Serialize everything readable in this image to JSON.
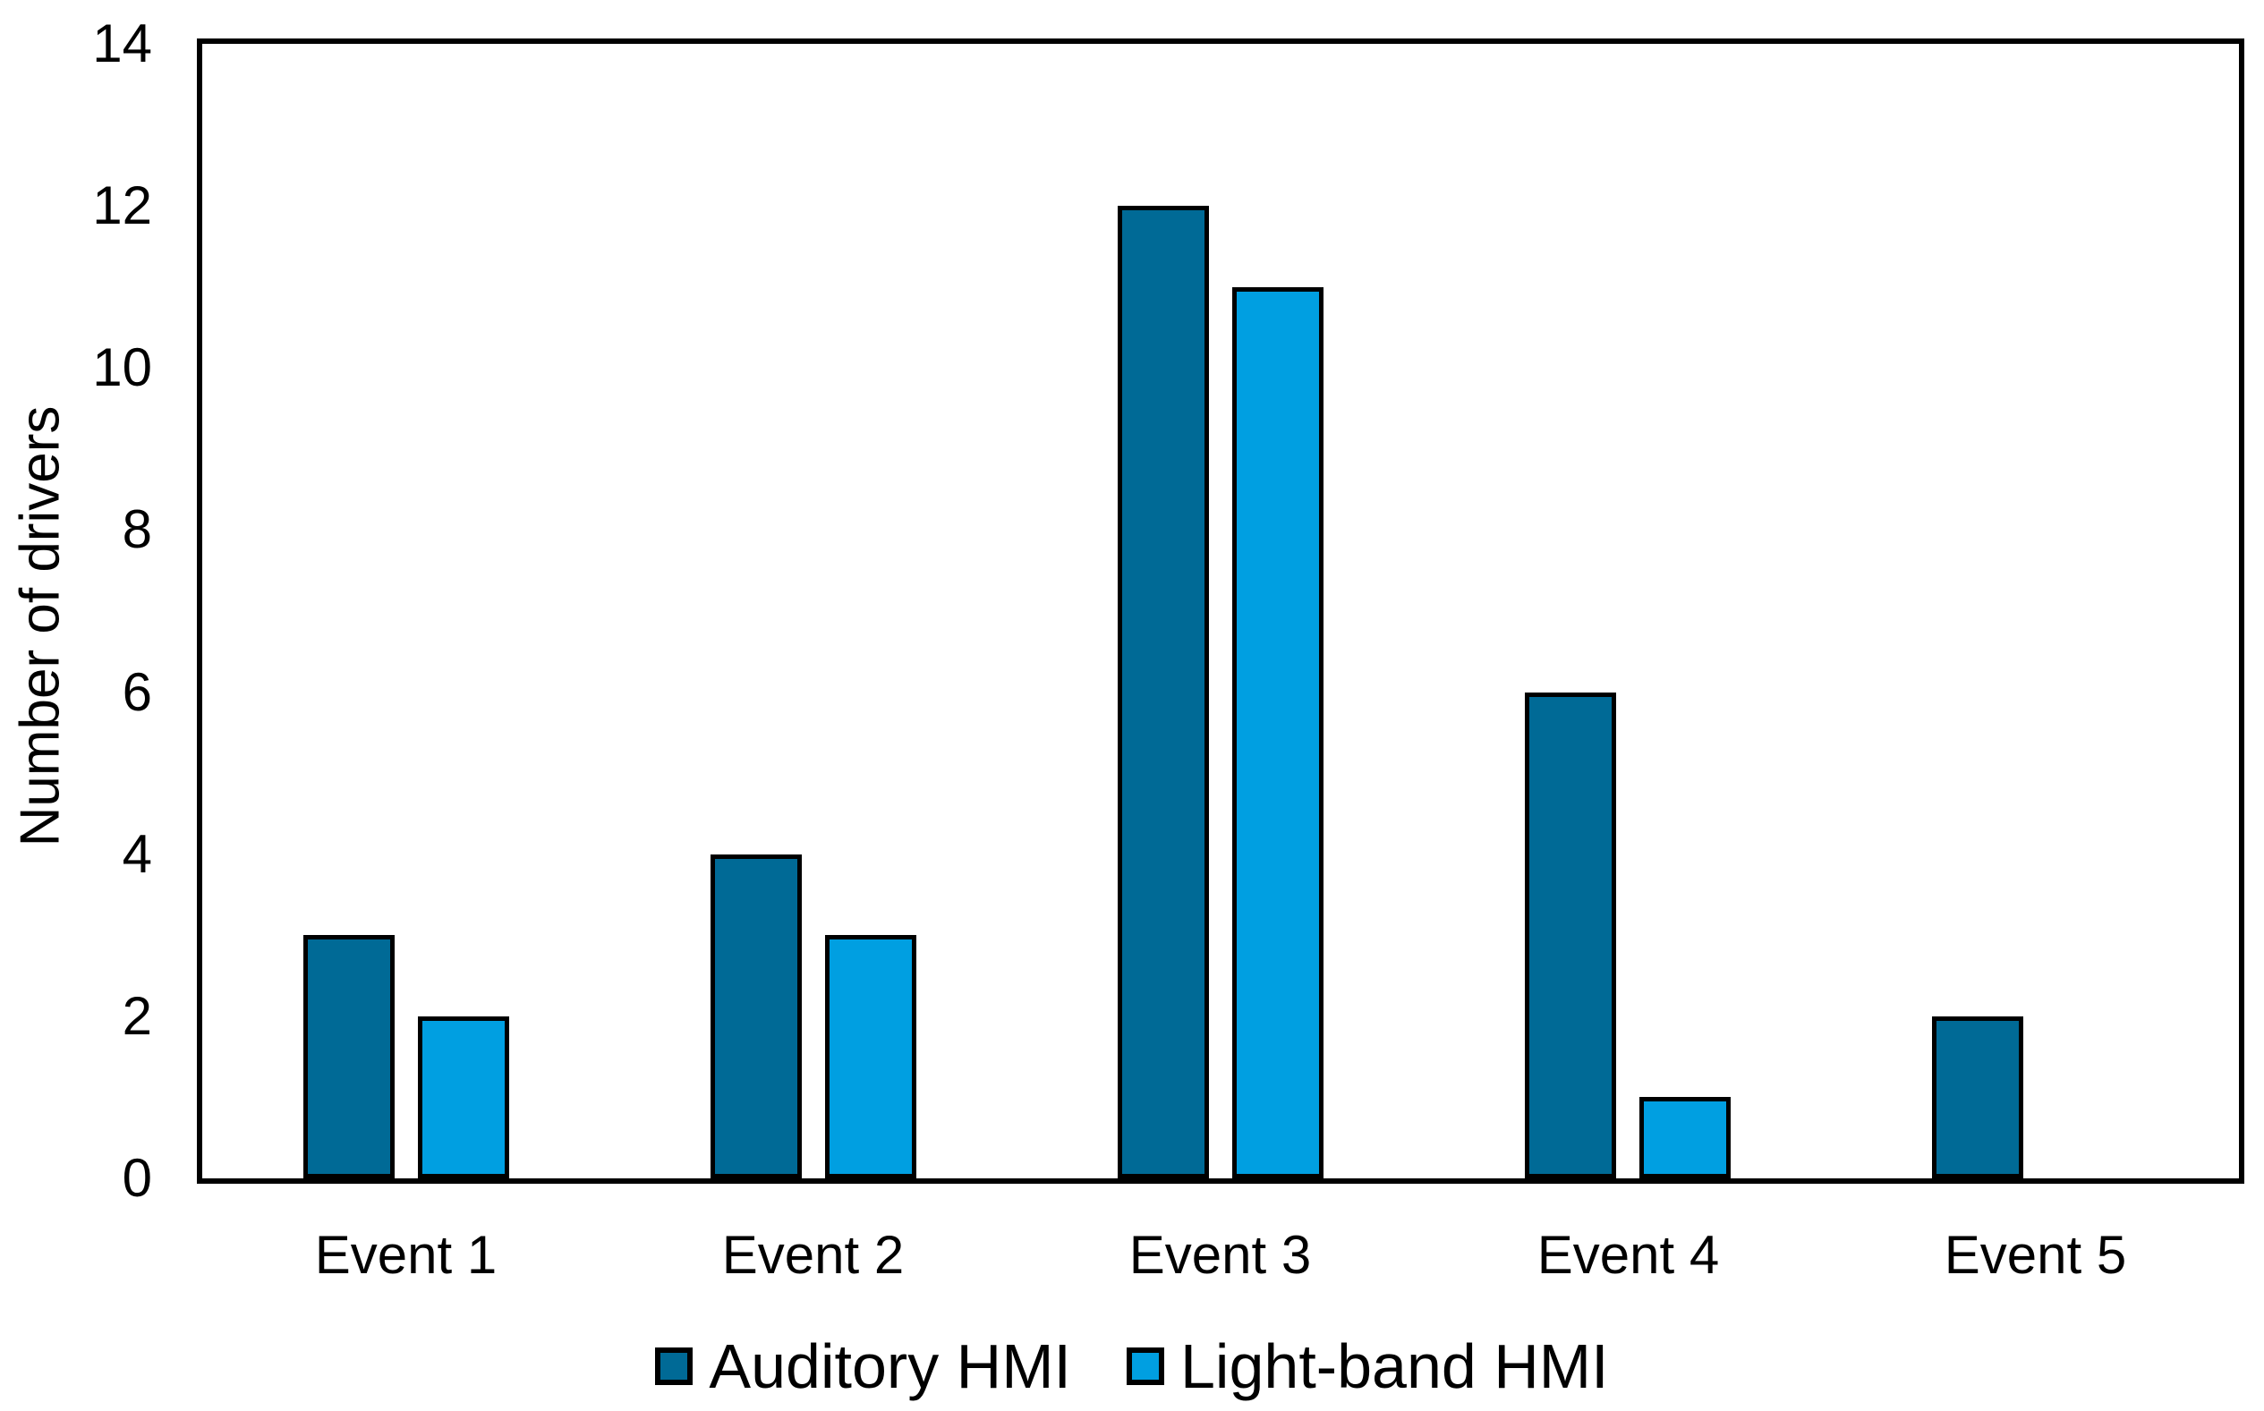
{
  "figure": {
    "background_color": "#ffffff",
    "text_color": "#000000",
    "axis_color": "#000000"
  },
  "chart_data": {
    "type": "bar",
    "title": "",
    "xlabel": "",
    "ylabel": "Number of drivers",
    "categories": [
      "Event 1",
      "Event 2",
      "Event 3",
      "Event 4",
      "Event 5"
    ],
    "series": [
      {
        "name": "Auditory HMI",
        "color": "#006a96",
        "values": [
          3,
          4,
          12,
          6,
          2
        ]
      },
      {
        "name": "Light-band HMI",
        "color": "#009fe1",
        "values": [
          2,
          3,
          11,
          1,
          0
        ]
      }
    ],
    "ylim": [
      0,
      14
    ],
    "yticks": [
      0,
      2,
      4,
      6,
      8,
      10,
      12,
      14
    ],
    "grid": false,
    "legend_position": "bottom",
    "bar_outline_color": "#000000"
  }
}
